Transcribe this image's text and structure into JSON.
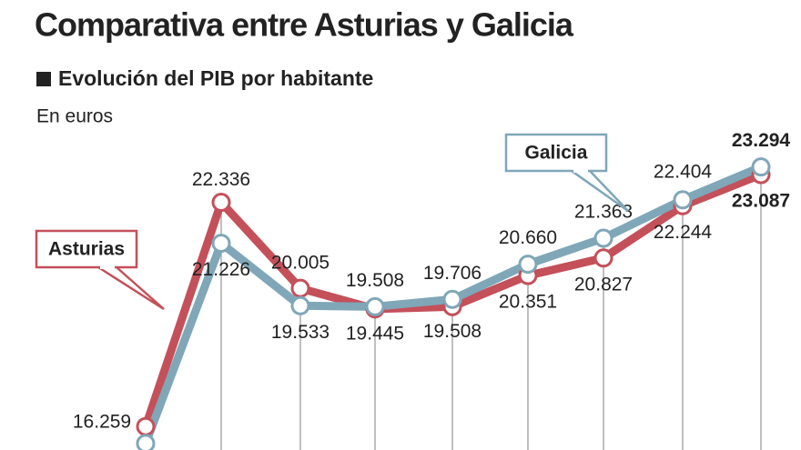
{
  "chart_data": {
    "type": "line",
    "title": "Comparativa entre Asturias y Galicia",
    "subtitle": "Evolución del PIB por habitante",
    "note": "En euros",
    "categories": [
      null,
      null,
      null,
      null,
      null,
      null,
      null,
      null,
      null
    ],
    "ylim": [
      15500,
      24000
    ],
    "series": [
      {
        "name": "Asturias",
        "color": "#c4505a",
        "values": [
          16259,
          22336,
          20005,
          19445,
          19508,
          20351,
          20827,
          22244,
          23087
        ],
        "value_labels": [
          "16.259",
          "22.336",
          "20.005",
          "19.445",
          "19.508",
          "20.351",
          "20.827",
          "22.244",
          "23.087"
        ]
      },
      {
        "name": "Galicia",
        "color": "#7fa7b8",
        "values": [
          15800,
          21226,
          19533,
          19508,
          19706,
          20660,
          21363,
          22404,
          23294
        ],
        "value_labels": [
          null,
          "21.226",
          "19.533",
          "19.508",
          "19.706",
          "20.660",
          "21.363",
          "22.404",
          "23.294"
        ]
      }
    ]
  }
}
